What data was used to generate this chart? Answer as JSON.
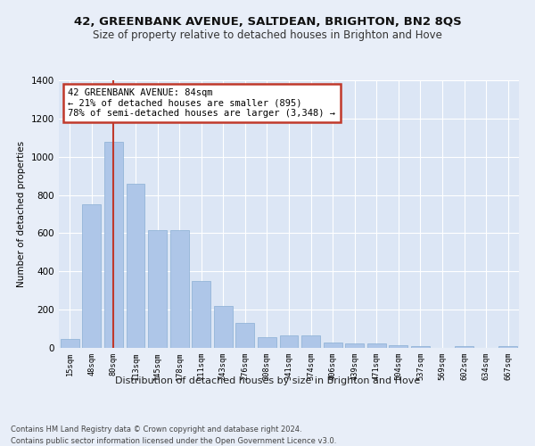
{
  "title": "42, GREENBANK AVENUE, SALTDEAN, BRIGHTON, BN2 8QS",
  "subtitle": "Size of property relative to detached houses in Brighton and Hove",
  "xlabel": "Distribution of detached houses by size in Brighton and Hove",
  "ylabel": "Number of detached properties",
  "footnote1": "Contains HM Land Registry data © Crown copyright and database right 2024.",
  "footnote2": "Contains public sector information licensed under the Open Government Licence v3.0.",
  "categories": [
    "15sqm",
    "48sqm",
    "80sqm",
    "113sqm",
    "145sqm",
    "178sqm",
    "211sqm",
    "243sqm",
    "276sqm",
    "308sqm",
    "341sqm",
    "374sqm",
    "406sqm",
    "439sqm",
    "471sqm",
    "504sqm",
    "537sqm",
    "569sqm",
    "602sqm",
    "634sqm",
    "667sqm"
  ],
  "values": [
    45,
    750,
    1080,
    860,
    615,
    615,
    350,
    220,
    130,
    55,
    65,
    65,
    30,
    25,
    25,
    12,
    10,
    0,
    8,
    0,
    8
  ],
  "bar_color": "#aec6e8",
  "bar_edge_color": "#8aafd4",
  "highlight_bar_index": 2,
  "highlight_line_color": "#c0392b",
  "annotation_text": "42 GREENBANK AVENUE: 84sqm\n← 21% of detached houses are smaller (895)\n78% of semi-detached houses are larger (3,348) →",
  "annotation_box_color": "#ffffff",
  "annotation_box_edge": "#c0392b",
  "ylim": [
    0,
    1400
  ],
  "yticks": [
    0,
    200,
    400,
    600,
    800,
    1000,
    1200,
    1400
  ],
  "background_color": "#e8eef8",
  "plot_bg_color": "#dce6f5",
  "grid_color": "#ffffff",
  "title_fontsize": 9.5,
  "subtitle_fontsize": 8.5
}
